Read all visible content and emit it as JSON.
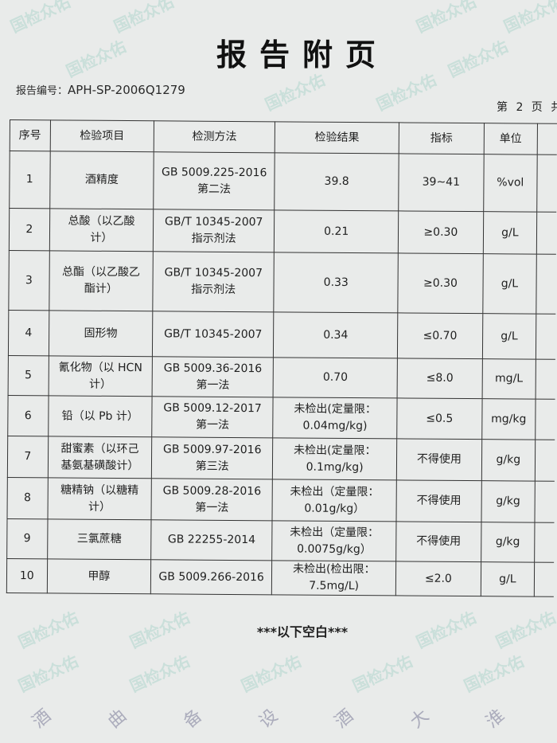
{
  "header": {
    "title": "报告附页",
    "report_no_label": "报告编号：",
    "report_no": "APH-SP-2006Q1279",
    "page_text": "第 2 页 共"
  },
  "table": {
    "columns": [
      "序号",
      "检验项目",
      "检测方法",
      "检验结果",
      "指标",
      "单位"
    ],
    "rows": [
      {
        "no": "1",
        "item": "酒精度",
        "method": "GB 5009.225-2016\n第二法",
        "result": "39.8",
        "limit": "39~41",
        "unit": "%vol"
      },
      {
        "no": "2",
        "item": "总酸（以乙酸\n计）",
        "method": "GB/T 10345-2007\n指示剂法",
        "result": "0.21",
        "limit": "≥0.30",
        "unit": "g/L"
      },
      {
        "no": "3",
        "item": "总酯（以乙酸乙\n酯计）",
        "method": "GB/T 10345-2007\n指示剂法",
        "result": "0.33",
        "limit": "≥0.30",
        "unit": "g/L"
      },
      {
        "no": "4",
        "item": "固形物",
        "method": "GB/T 10345-2007",
        "result": "0.34",
        "limit": "≤0.70",
        "unit": "g/L"
      },
      {
        "no": "5",
        "item": "氰化物（以 HCN\n计）",
        "method": "GB 5009.36-2016\n第一法",
        "result": "0.70",
        "limit": "≤8.0",
        "unit": "mg/L"
      },
      {
        "no": "6",
        "item": "铅（以 Pb 计）",
        "method": "GB 5009.12-2017\n第一法",
        "result": "未检出(定量限：\n0.04mg/kg)",
        "limit": "≤0.5",
        "unit": "mg/kg"
      },
      {
        "no": "7",
        "item": "甜蜜素（以环己\n基氨基磺酸计）",
        "method": "GB 5009.97-2016\n第三法",
        "result": "未检出(定量限：\n0.1mg/kg)",
        "limit": "不得使用",
        "unit": "g/kg"
      },
      {
        "no": "8",
        "item": "糖精钠（以糖精\n计）",
        "method": "GB 5009.28-2016\n第一法",
        "result": "未检出（定量限：\n0.01g/kg）",
        "limit": "不得使用",
        "unit": "g/kg"
      },
      {
        "no": "9",
        "item": "三氯蔗糖",
        "method": "GB 22255-2014",
        "result": "未检出（定量限：\n0.0075g/kg）",
        "limit": "不得使用",
        "unit": "g/kg"
      },
      {
        "no": "10",
        "item": "甲醇",
        "method": "GB 5009.266-2016",
        "result": "未检出(检出限：\n7.5mg/L)",
        "limit": "≤2.0",
        "unit": "g/L"
      }
    ]
  },
  "footer": {
    "blank_note": "***以下空白***"
  },
  "overlay": {
    "stamp_chars": [
      "酒",
      "曲",
      "备",
      "设",
      "酒",
      "大",
      "淮"
    ],
    "watermark": "国检众佑"
  }
}
